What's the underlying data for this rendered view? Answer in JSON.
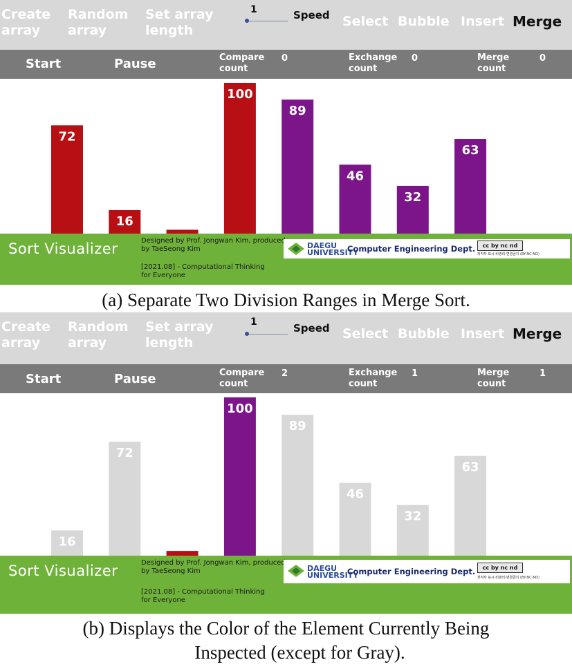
{
  "toolbar": {
    "create_array": "Create array",
    "random_array": "Random array",
    "set_array_length": "Set array length",
    "speed_value": "1",
    "speed_label": "Speed",
    "select": "Select",
    "bubble": "Bubble",
    "insert": "Insert",
    "merge": "Merge"
  },
  "controls": {
    "start": "Start",
    "pause": "Pause",
    "compare_label": "Compare count",
    "exchange_label": "Exchange count",
    "merge_label": "Merge count"
  },
  "footer": {
    "brand": "Sort Visualizer",
    "credit": "Designed by Prof. Jongwan Kim, produced by TaeSeong Kim",
    "course": "[2021.08] - Computational Thinking for Everyone",
    "university": "DAEGU UNIVERSITY",
    "dept": "Computer Engineering Dept.",
    "cc_mark": "cc by nc nd",
    "license": "저작자 표시-비영리-변경금지 (BY-NC-ND)"
  },
  "colors": {
    "red": "#b80f14",
    "purple": "#7b1589",
    "gray": "#d8d8d8",
    "green": "#6fb23a"
  },
  "panel_a": {
    "counts": {
      "compare": "0",
      "exchange": "0",
      "merge": "0"
    },
    "caption": "(a)  Separate Two Division Ranges in Merge Sort.",
    "chart_data": {
      "type": "bar",
      "values": [
        72,
        16,
        3,
        100,
        89,
        46,
        32,
        63
      ],
      "colors": [
        "red",
        "red",
        "red",
        "red",
        "purple",
        "purple",
        "purple",
        "purple"
      ],
      "ylim": [
        0,
        100
      ]
    }
  },
  "panel_b": {
    "counts": {
      "compare": "2",
      "exchange": "1",
      "merge": "1"
    },
    "caption_line1": "(b)  Displays the Color of the Element Currently Being",
    "caption_line2": "Inspected (except for Gray).",
    "chart_data": {
      "type": "bar",
      "values": [
        16,
        72,
        3,
        100,
        89,
        46,
        32,
        63
      ],
      "colors": [
        "gray",
        "gray",
        "red",
        "purple",
        "gray",
        "gray",
        "gray",
        "gray"
      ],
      "ylim": [
        0,
        100
      ]
    }
  }
}
